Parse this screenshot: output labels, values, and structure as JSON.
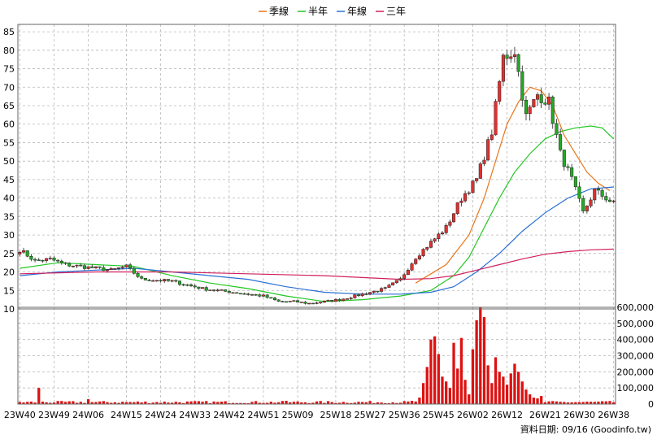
{
  "chart_data": {
    "type": "candlestick",
    "legend": {
      "position": "top-center",
      "entries": [
        {
          "name": "季線",
          "color": "#e8751a"
        },
        {
          "name": "半年",
          "color": "#22c722"
        },
        {
          "name": "年線",
          "color": "#2a6fd6"
        },
        {
          "name": "三年",
          "color": "#d0205a"
        }
      ]
    },
    "price_axis": {
      "ticks": [
        10,
        15,
        20,
        25,
        30,
        35,
        40,
        45,
        50,
        55,
        60,
        65,
        70,
        75,
        80,
        85
      ],
      "range": [
        10,
        87
      ],
      "side": "left"
    },
    "volume_axis": {
      "ticks": [
        "0",
        "100,000",
        "200,000",
        "300,000",
        "400,000",
        "500,000",
        "600,000"
      ],
      "range": [
        0,
        600000
      ],
      "side": "right"
    },
    "x_labels": [
      "23W40",
      "23W49",
      "24W06",
      "24W15",
      "24W24",
      "24W33",
      "24W42",
      "24W51",
      "25W09",
      "25W18",
      "25W27",
      "25W36",
      "25W45",
      "26W02",
      "26W12",
      "26W21",
      "26W30",
      "26W38"
    ],
    "weeks_total": 157,
    "grid": true,
    "up_color": "#e03030",
    "down_color": "#22aa22",
    "volume_color": "#dd1111",
    "price_anchors": [
      [
        0,
        26
      ],
      [
        4,
        23
      ],
      [
        8,
        23.5
      ],
      [
        12,
        22
      ],
      [
        16,
        21.5
      ],
      [
        20,
        21
      ],
      [
        24,
        20.5
      ],
      [
        28,
        21.5
      ],
      [
        32,
        18
      ],
      [
        36,
        17.8
      ],
      [
        40,
        17.5
      ],
      [
        44,
        16.5
      ],
      [
        48,
        15.5
      ],
      [
        52,
        15
      ],
      [
        56,
        14.5
      ],
      [
        60,
        14
      ],
      [
        64,
        13.5
      ],
      [
        68,
        12
      ],
      [
        72,
        12
      ],
      [
        76,
        11.5
      ],
      [
        80,
        12
      ],
      [
        84,
        12.5
      ],
      [
        88,
        13.5
      ],
      [
        92,
        14.5
      ],
      [
        96,
        15.5
      ],
      [
        100,
        18
      ],
      [
        104,
        24
      ],
      [
        108,
        28
      ],
      [
        112,
        32
      ],
      [
        116,
        40
      ],
      [
        120,
        45
      ],
      [
        124,
        58
      ],
      [
        127,
        78
      ],
      [
        130,
        80
      ],
      [
        133,
        62
      ],
      [
        136,
        68
      ],
      [
        139,
        66
      ],
      [
        142,
        52
      ],
      [
        145,
        45
      ],
      [
        148,
        36
      ],
      [
        151,
        42
      ],
      [
        154,
        40
      ],
      [
        156,
        38.5
      ]
    ],
    "ma_series": {
      "季線": [
        [
          104,
          17
        ],
        [
          112,
          22
        ],
        [
          118,
          30
        ],
        [
          122,
          40
        ],
        [
          125,
          50
        ],
        [
          128,
          60
        ],
        [
          131,
          66
        ],
        [
          134,
          70
        ],
        [
          137,
          69
        ],
        [
          140,
          65
        ],
        [
          143,
          57
        ],
        [
          146,
          52
        ],
        [
          149,
          47
        ],
        [
          152,
          44
        ],
        [
          155,
          42
        ]
      ],
      "半年": [
        [
          0,
          21
        ],
        [
          10,
          22.5
        ],
        [
          20,
          22
        ],
        [
          30,
          21.5
        ],
        [
          40,
          19
        ],
        [
          50,
          17
        ],
        [
          60,
          15.5
        ],
        [
          70,
          13.5
        ],
        [
          80,
          12
        ],
        [
          90,
          12.5
        ],
        [
          100,
          13.5
        ],
        [
          108,
          15
        ],
        [
          114,
          19
        ],
        [
          118,
          24
        ],
        [
          122,
          32
        ],
        [
          126,
          40
        ],
        [
          130,
          47
        ],
        [
          134,
          52
        ],
        [
          138,
          56
        ],
        [
          142,
          58
        ],
        [
          146,
          59
        ],
        [
          150,
          59.5
        ],
        [
          153,
          59
        ],
        [
          156,
          56
        ]
      ],
      "年線": [
        [
          0,
          19
        ],
        [
          10,
          20
        ],
        [
          20,
          20.5
        ],
        [
          30,
          21
        ],
        [
          40,
          20
        ],
        [
          50,
          19
        ],
        [
          60,
          18
        ],
        [
          70,
          16
        ],
        [
          80,
          14.5
        ],
        [
          90,
          14
        ],
        [
          100,
          14
        ],
        [
          108,
          14.5
        ],
        [
          114,
          16
        ],
        [
          120,
          20
        ],
        [
          126,
          25
        ],
        [
          132,
          31
        ],
        [
          138,
          36
        ],
        [
          144,
          40
        ],
        [
          150,
          42.5
        ],
        [
          156,
          43
        ]
      ],
      "三年": [
        [
          0,
          19.5
        ],
        [
          20,
          20
        ],
        [
          40,
          20
        ],
        [
          60,
          19.5
        ],
        [
          80,
          19
        ],
        [
          100,
          18
        ],
        [
          108,
          18.2
        ],
        [
          114,
          19
        ],
        [
          120,
          20.5
        ],
        [
          126,
          22
        ],
        [
          132,
          23.5
        ],
        [
          138,
          24.8
        ],
        [
          144,
          25.5
        ],
        [
          150,
          26
        ],
        [
          156,
          26.2
        ]
      ]
    },
    "volume_spikes": [
      [
        5,
        100000
      ],
      [
        18,
        30000
      ],
      [
        70,
        20000
      ],
      [
        103,
        20000
      ],
      [
        105,
        40000
      ],
      [
        106,
        130000
      ],
      [
        107,
        230000
      ],
      [
        108,
        400000
      ],
      [
        109,
        420000
      ],
      [
        110,
        310000
      ],
      [
        111,
        170000
      ],
      [
        112,
        140000
      ],
      [
        113,
        100000
      ],
      [
        114,
        380000
      ],
      [
        115,
        220000
      ],
      [
        116,
        410000
      ],
      [
        117,
        150000
      ],
      [
        118,
        60000
      ],
      [
        119,
        340000
      ],
      [
        120,
        520000
      ],
      [
        121,
        600000
      ],
      [
        122,
        540000
      ],
      [
        123,
        240000
      ],
      [
        124,
        130000
      ],
      [
        125,
        290000
      ],
      [
        126,
        200000
      ],
      [
        127,
        170000
      ],
      [
        128,
        120000
      ],
      [
        129,
        190000
      ],
      [
        130,
        250000
      ],
      [
        131,
        200000
      ],
      [
        132,
        140000
      ],
      [
        133,
        90000
      ],
      [
        134,
        60000
      ],
      [
        135,
        40000
      ],
      [
        136,
        35000
      ],
      [
        137,
        50000
      ]
    ]
  },
  "footer": {
    "credit": "資料日期: 09/16  (Goodinfo.tw)"
  }
}
